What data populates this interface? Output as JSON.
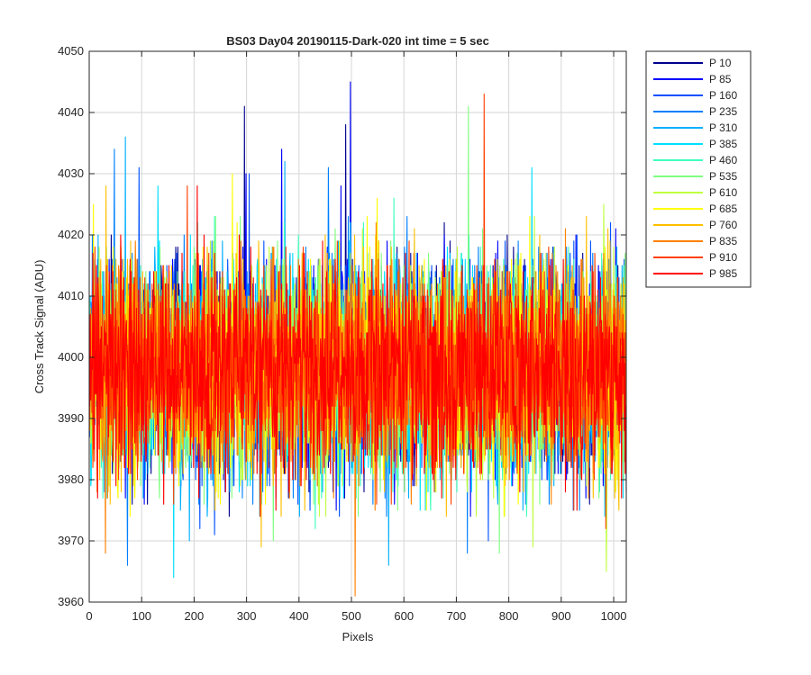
{
  "chart_data": {
    "type": "line",
    "title": "BS03 Day04 20190115-Dark-020 int time = 5 sec",
    "xlabel": "Pixels",
    "ylabel": "Cross Track Signal (ADU)",
    "xlim": [
      0,
      1024
    ],
    "ylim": [
      3960,
      4050
    ],
    "x_ticks": [
      0,
      100,
      200,
      300,
      400,
      500,
      600,
      700,
      800,
      900,
      1000
    ],
    "y_ticks": [
      3960,
      3970,
      3980,
      3990,
      4000,
      4010,
      4020,
      4030,
      4040,
      4050
    ],
    "grid": true,
    "legend_position": "outside-top-right",
    "baseline": 3998,
    "n_points": 1024,
    "series": [
      {
        "name": "P 10",
        "color": "#00008f",
        "spikes": [
          [
            295,
            4041
          ],
          [
            488,
            4038
          ],
          [
            500,
            3982
          ],
          [
            830,
            3986
          ]
        ]
      },
      {
        "name": "P 85",
        "color": "#0000ff",
        "spikes": [
          [
            298,
            4030
          ],
          [
            366,
            4034
          ],
          [
            479,
            4028
          ],
          [
            497,
            4045
          ],
          [
            104,
            3976
          ],
          [
            470,
            3975
          ]
        ]
      },
      {
        "name": "P 160",
        "color": "#0050ff",
        "spikes": [
          [
            94,
            4031
          ],
          [
            304,
            4030
          ],
          [
            210,
            3972
          ],
          [
            238,
            3971
          ],
          [
            760,
            3970
          ]
        ]
      },
      {
        "name": "P 235",
        "color": "#0080ff",
        "spikes": [
          [
            47,
            4034
          ],
          [
            455,
            4031
          ],
          [
            72,
            3966
          ],
          [
            540,
            3976
          ],
          [
            720,
            3968
          ]
        ]
      },
      {
        "name": "P 310",
        "color": "#00afff",
        "spikes": [
          [
            68,
            4036
          ],
          [
            372,
            4032
          ],
          [
            190,
            3970
          ],
          [
            570,
            3966
          ],
          [
            400,
            3974
          ]
        ]
      },
      {
        "name": "P 385",
        "color": "#00dfff",
        "spikes": [
          [
            130,
            4028
          ],
          [
            843,
            4031
          ],
          [
            160,
            3964
          ],
          [
            640,
            3975
          ]
        ]
      },
      {
        "name": "P 460",
        "color": "#3fffbf",
        "spikes": [
          [
            580,
            4026
          ],
          [
            430,
            3972
          ]
        ]
      },
      {
        "name": "P 535",
        "color": "#7fff7f",
        "spikes": [
          [
            722,
            4041
          ],
          [
            240,
            4023
          ],
          [
            350,
            3970
          ],
          [
            781,
            3968
          ]
        ]
      },
      {
        "name": "P 610",
        "color": "#bfff3f",
        "spikes": [
          [
            980,
            4025
          ],
          [
            985,
            3965
          ],
          [
            845,
            3969
          ]
        ]
      },
      {
        "name": "P 685",
        "color": "#ffff00",
        "spikes": [
          [
            7,
            4025
          ],
          [
            272,
            4030
          ],
          [
            548,
            4026
          ],
          [
            612,
            3983
          ]
        ]
      },
      {
        "name": "P 760",
        "color": "#ffbf00",
        "spikes": [
          [
            31,
            4028
          ],
          [
            327,
            3969
          ],
          [
            680,
            3974
          ]
        ]
      },
      {
        "name": "P 835",
        "color": "#ff8000",
        "spikes": [
          [
            506,
            3961
          ],
          [
            30,
            3968
          ],
          [
            880,
            3976
          ]
        ]
      },
      {
        "name": "P 910",
        "color": "#ff4000",
        "spikes": [
          [
            752,
            4043
          ],
          [
            186,
            4028
          ],
          [
            984,
            3972
          ]
        ]
      },
      {
        "name": "P 985",
        "color": "#ff0000",
        "spikes": [
          [
            205,
            4028
          ],
          [
            50,
            3979
          ],
          [
            820,
            3978
          ]
        ]
      }
    ]
  }
}
